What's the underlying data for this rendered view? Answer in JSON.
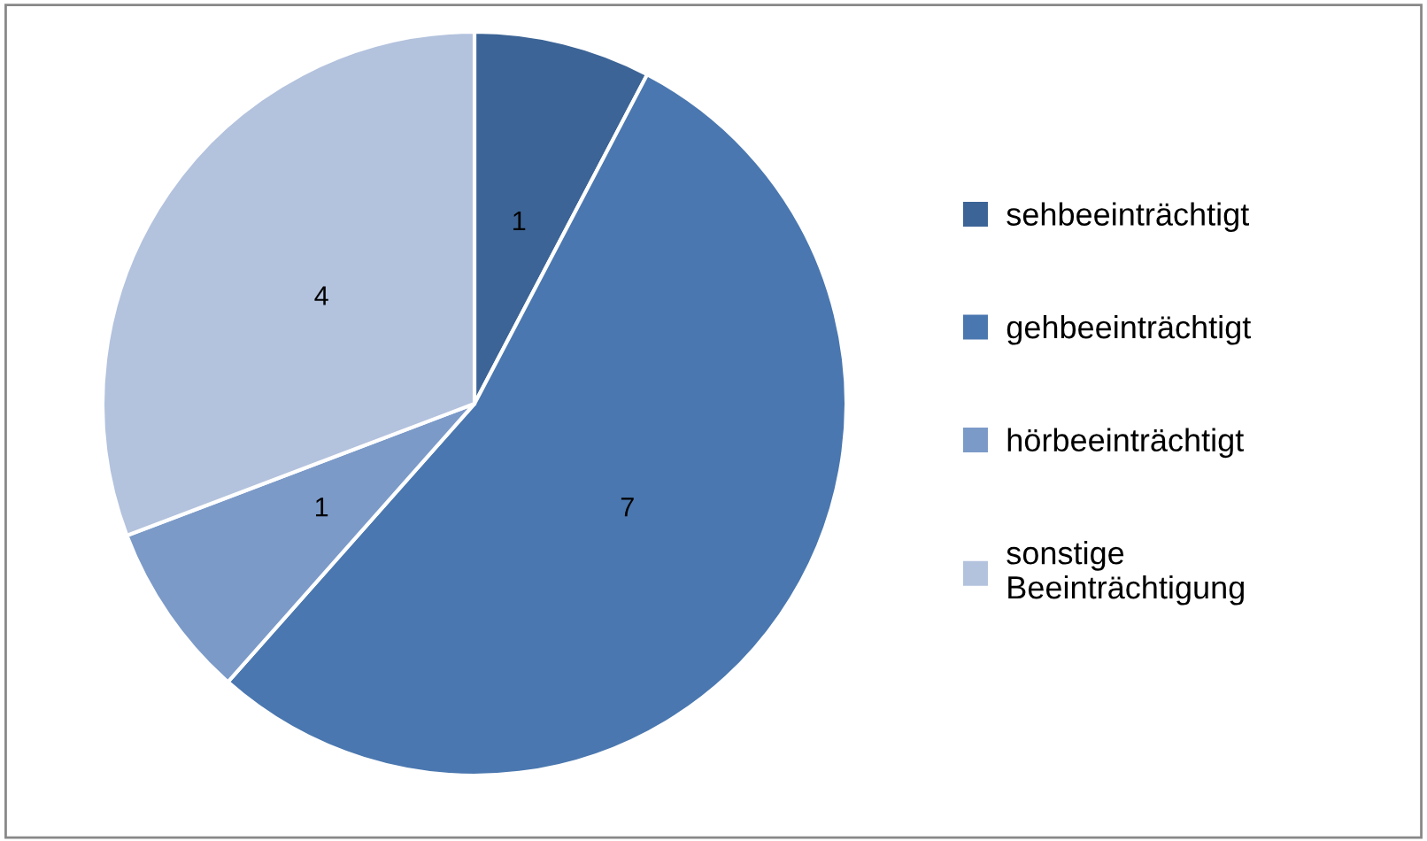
{
  "chart_data": {
    "type": "pie",
    "categories": [
      "sehbeeinträchtigt",
      "gehbeeinträchtigt",
      "hörbeeinträchtigt",
      "sonstige\nBeeinträchtigung"
    ],
    "values": [
      1,
      7,
      1,
      4
    ],
    "colors": [
      "#3c6496",
      "#4a77af",
      "#7b9ac8",
      "#b3c2dd"
    ],
    "data_labels": true,
    "legend": "right"
  }
}
